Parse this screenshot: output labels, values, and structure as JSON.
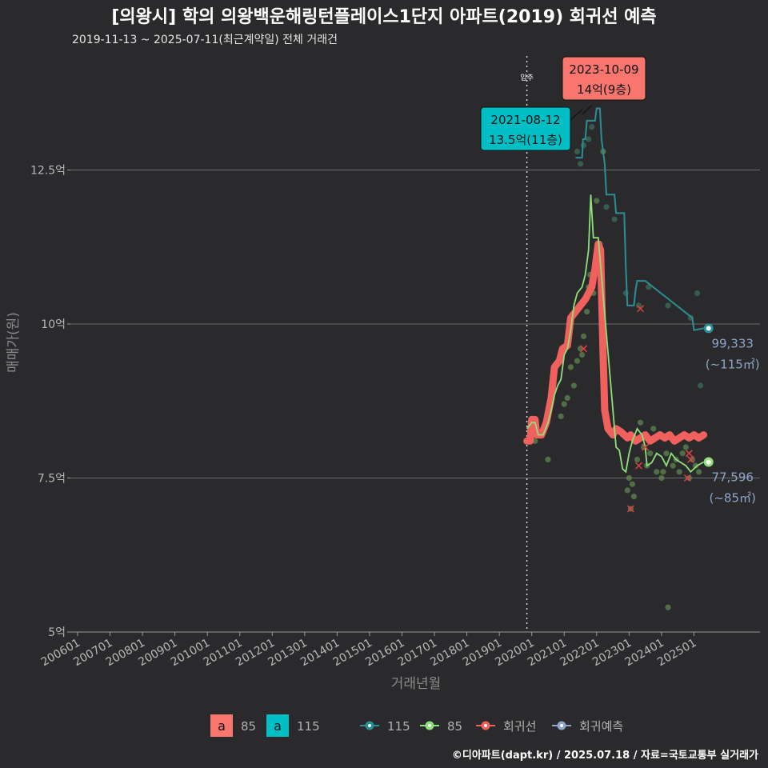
{
  "header": {
    "title": "[의왕시] 학의 의왕백운해링턴플레이스1단지 아파트(2019) 회귀선 예측",
    "subtitle": "2019-11-13 ~ 2025-07-11(최근계약일) 전체 거래건"
  },
  "caption": "©디아파트(dapt.kr) / 2025.07.18 / 자료=국토교통부 실거래가",
  "colors": {
    "background": "#2a2a2c",
    "s85": "#f8766d",
    "s115": "#00bfc4",
    "line115": "#2a8f94",
    "line85": "#8ee07a",
    "regression": "#f0605c",
    "forecast": "#8ea5c8"
  },
  "chart_data": {
    "type": "line",
    "xlabel": "거래년월",
    "ylabel": "매매가(원)",
    "ylim": [
      5,
      14.5
    ],
    "y_ticks": [
      {
        "value": 5,
        "label": "5억"
      },
      {
        "value": 7.5,
        "label": "7.5억"
      },
      {
        "value": 10,
        "label": "10억"
      },
      {
        "value": 12.5,
        "label": "12.5억"
      }
    ],
    "x_ticks": [
      "200601",
      "200701",
      "200801",
      "200901",
      "201001",
      "201101",
      "201201",
      "201301",
      "201401",
      "201501",
      "201601",
      "201701",
      "201801",
      "201901",
      "202001",
      "202101",
      "202201",
      "202301",
      "202401",
      "202501"
    ],
    "x_start_year": 2006,
    "x_end_year": 2026.05,
    "vline": {
      "x": 2019.85,
      "label": "입주"
    },
    "callouts": [
      {
        "date": "2023-10-09",
        "text": "14억(9층)",
        "x": 2021.7,
        "y": 13.55,
        "kind": "85"
      },
      {
        "date": "2021-08-12",
        "text": "13.5억(11층)",
        "x": 2021.6,
        "y": 13.5,
        "kind": "115"
      }
    ],
    "end_labels": [
      {
        "value": "99,333",
        "area": "(~115㎡)",
        "x": 2025.45,
        "y": 9.93
      },
      {
        "value": "77,596",
        "area": "(~85㎡)",
        "x": 2025.45,
        "y": 7.76
      }
    ],
    "legend": {
      "fill_items": [
        {
          "key": "a",
          "label": "85"
        },
        {
          "key": "a",
          "label": "115"
        }
      ],
      "line_items": [
        {
          "label": "115"
        },
        {
          "label": "85"
        },
        {
          "label": "회귀선"
        },
        {
          "label": "회귀예측"
        }
      ]
    },
    "series": [
      {
        "name": "115",
        "points": [
          [
            2021.35,
            12.7
          ],
          [
            2021.55,
            12.7
          ],
          [
            2021.58,
            13.0
          ],
          [
            2021.65,
            13.0
          ],
          [
            2021.7,
            13.3
          ],
          [
            2021.95,
            13.3
          ],
          [
            2022.0,
            13.5
          ],
          [
            2022.1,
            13.5
          ],
          [
            2022.15,
            13.0
          ],
          [
            2022.25,
            12.6
          ],
          [
            2022.3,
            12.1
          ],
          [
            2022.55,
            12.1
          ],
          [
            2022.6,
            11.8
          ],
          [
            2022.85,
            11.8
          ],
          [
            2022.9,
            10.9
          ],
          [
            2022.95,
            10.3
          ],
          [
            2023.15,
            10.3
          ],
          [
            2023.2,
            10.55
          ],
          [
            2023.25,
            10.7
          ],
          [
            2023.5,
            10.7
          ],
          [
            2024.95,
            10.1
          ],
          [
            2025.0,
            9.9
          ],
          [
            2025.3,
            9.93
          ]
        ]
      },
      {
        "name": "85",
        "points": [
          [
            2019.85,
            8.3
          ],
          [
            2020.0,
            8.4
          ],
          [
            2020.1,
            8.4
          ],
          [
            2020.2,
            8.2
          ],
          [
            2020.35,
            8.2
          ],
          [
            2020.5,
            8.4
          ],
          [
            2020.6,
            8.6
          ],
          [
            2020.7,
            8.85
          ],
          [
            2020.8,
            9.0
          ],
          [
            2020.9,
            9.1
          ],
          [
            2021.0,
            9.5
          ],
          [
            2021.1,
            9.6
          ],
          [
            2021.2,
            9.9
          ],
          [
            2021.3,
            10.3
          ],
          [
            2021.4,
            10.5
          ],
          [
            2021.55,
            10.6
          ],
          [
            2021.65,
            10.8
          ],
          [
            2021.75,
            11.2
          ],
          [
            2021.82,
            12.1
          ],
          [
            2021.9,
            11.4
          ],
          [
            2022.05,
            11.4
          ],
          [
            2022.6,
            8.0
          ],
          [
            2022.7,
            7.95
          ],
          [
            2022.8,
            7.65
          ],
          [
            2022.9,
            7.6
          ],
          [
            2023.0,
            7.9
          ],
          [
            2023.1,
            8.1
          ],
          [
            2023.25,
            8.3
          ],
          [
            2023.4,
            8.2
          ],
          [
            2023.5,
            8.0
          ],
          [
            2023.55,
            7.7
          ],
          [
            2023.7,
            7.75
          ],
          [
            2023.85,
            7.9
          ],
          [
            2024.0,
            7.85
          ],
          [
            2024.15,
            7.7
          ],
          [
            2024.3,
            7.9
          ],
          [
            2024.45,
            7.8
          ],
          [
            2024.6,
            7.75
          ],
          [
            2024.75,
            7.7
          ],
          [
            2024.9,
            7.6
          ],
          [
            2025.1,
            7.7
          ],
          [
            2025.3,
            7.76
          ]
        ]
      },
      {
        "name": "회귀선",
        "points": [
          [
            2019.85,
            8.1
          ],
          [
            2019.95,
            8.1
          ],
          [
            2020.0,
            8.45
          ],
          [
            2020.1,
            8.45
          ],
          [
            2020.15,
            8.2
          ],
          [
            2020.3,
            8.2
          ],
          [
            2020.45,
            8.4
          ],
          [
            2020.6,
            8.8
          ],
          [
            2020.7,
            9.3
          ],
          [
            2020.85,
            9.4
          ],
          [
            2020.95,
            9.6
          ],
          [
            2021.1,
            9.65
          ],
          [
            2021.2,
            10.1
          ],
          [
            2021.35,
            10.2
          ],
          [
            2021.5,
            10.3
          ],
          [
            2021.65,
            10.4
          ],
          [
            2021.75,
            10.5
          ],
          [
            2021.85,
            10.6
          ],
          [
            2021.95,
            10.9
          ],
          [
            2022.05,
            11.3
          ],
          [
            2022.12,
            11.2
          ],
          [
            2022.2,
            9.5
          ],
          [
            2022.25,
            8.6
          ],
          [
            2022.35,
            8.3
          ],
          [
            2022.5,
            8.2
          ],
          [
            2022.6,
            8.3
          ],
          [
            2022.75,
            8.25
          ],
          [
            2022.85,
            8.2
          ],
          [
            2022.95,
            8.15
          ],
          [
            2023.05,
            8.2
          ],
          [
            2023.2,
            8.1
          ],
          [
            2023.35,
            8.15
          ],
          [
            2023.5,
            8.2
          ],
          [
            2023.65,
            8.1
          ],
          [
            2023.8,
            8.15
          ],
          [
            2023.95,
            8.2
          ],
          [
            2024.1,
            8.15
          ],
          [
            2024.25,
            8.2
          ],
          [
            2024.4,
            8.1
          ],
          [
            2024.55,
            8.15
          ],
          [
            2024.7,
            8.2
          ],
          [
            2024.85,
            8.15
          ],
          [
            2025.0,
            8.2
          ],
          [
            2025.15,
            8.15
          ],
          [
            2025.3,
            8.2
          ]
        ]
      }
    ],
    "scatter_85": [
      [
        2020.1,
        8.1
      ],
      [
        2020.5,
        7.8
      ],
      [
        2020.9,
        8.5
      ],
      [
        2021.0,
        8.7
      ],
      [
        2021.1,
        8.8
      ],
      [
        2021.2,
        9.3
      ],
      [
        2021.3,
        9.0
      ],
      [
        2021.4,
        9.4
      ],
      [
        2021.5,
        9.6
      ],
      [
        2021.55,
        9.5
      ],
      [
        2021.6,
        9.8
      ],
      [
        2021.7,
        10.2
      ],
      [
        2021.75,
        10.6
      ],
      [
        2021.8,
        10.8
      ],
      [
        2021.9,
        10.5
      ],
      [
        2022.0,
        12.0
      ],
      [
        2022.1,
        11.3
      ],
      [
        2022.2,
        12.8
      ],
      [
        2022.95,
        7.3
      ],
      [
        2023.0,
        7.5
      ],
      [
        2023.05,
        7.0
      ],
      [
        2023.1,
        7.4
      ],
      [
        2023.15,
        7.2
      ],
      [
        2023.25,
        7.8
      ],
      [
        2023.35,
        8.4
      ],
      [
        2023.45,
        8.0
      ],
      [
        2023.55,
        7.7
      ],
      [
        2023.65,
        7.9
      ],
      [
        2023.75,
        8.3
      ],
      [
        2023.85,
        7.6
      ],
      [
        2024.0,
        7.5
      ],
      [
        2024.15,
        7.9
      ],
      [
        2024.25,
        8.2
      ],
      [
        2024.35,
        7.7
      ],
      [
        2024.45,
        7.8
      ],
      [
        2024.55,
        7.6
      ],
      [
        2024.65,
        7.9
      ],
      [
        2024.75,
        8.0
      ],
      [
        2024.85,
        7.5
      ],
      [
        2024.95,
        7.8
      ],
      [
        2025.05,
        7.7
      ],
      [
        2025.15,
        7.6
      ],
      [
        2024.2,
        5.4
      ],
      [
        2024.05,
        7.6
      ]
    ],
    "scatter_115": [
      [
        2021.4,
        12.8
      ],
      [
        2021.5,
        12.6
      ],
      [
        2021.6,
        12.9
      ],
      [
        2021.75,
        13.0
      ],
      [
        2021.85,
        13.2
      ],
      [
        2022.3,
        11.9
      ],
      [
        2022.55,
        11.7
      ],
      [
        2022.9,
        10.5
      ],
      [
        2023.3,
        10.3
      ],
      [
        2023.6,
        10.6
      ],
      [
        2024.2,
        10.3
      ],
      [
        2024.9,
        10.1
      ],
      [
        2025.1,
        10.5
      ],
      [
        2025.2,
        9.0
      ],
      [
        2022.5,
        14.0
      ]
    ],
    "x_marks": [
      [
        2021.6,
        9.6
      ],
      [
        2023.05,
        7.0
      ],
      [
        2023.3,
        7.7
      ],
      [
        2023.35,
        10.25
      ],
      [
        2024.8,
        7.5
      ],
      [
        2024.85,
        7.9
      ],
      [
        2024.9,
        7.8
      ],
      [
        2023.5,
        8.0
      ]
    ]
  }
}
